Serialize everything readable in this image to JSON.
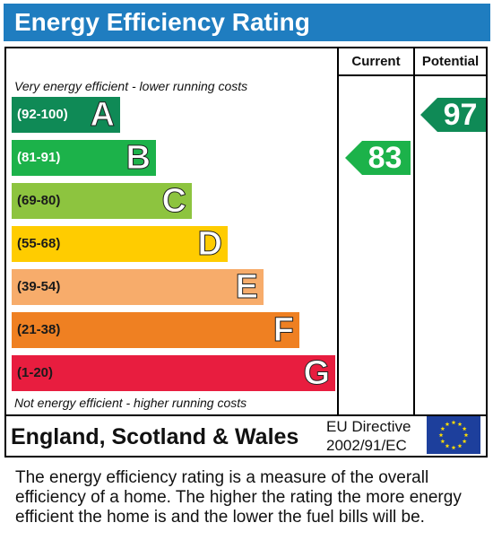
{
  "title": "Energy Efficiency Rating",
  "columns": {
    "current": "Current",
    "potential": "Potential"
  },
  "notes": {
    "top": "Very energy efficient - lower running costs",
    "bottom": "Not energy efficient - higher running costs"
  },
  "chart_data": {
    "type": "bar",
    "bands": [
      {
        "range": "(92-100)",
        "letter": "A",
        "color": "#0f8a56",
        "dark": false
      },
      {
        "range": "(81-91)",
        "letter": "B",
        "color": "#1cb24a",
        "dark": false
      },
      {
        "range": "(69-80)",
        "letter": "C",
        "color": "#8dc43f",
        "dark": true
      },
      {
        "range": "(55-68)",
        "letter": "D",
        "color": "#ffcc00",
        "dark": true
      },
      {
        "range": "(39-54)",
        "letter": "E",
        "color": "#f7ac6b",
        "dark": true
      },
      {
        "range": "(21-38)",
        "letter": "F",
        "color": "#ef8022",
        "dark": true
      },
      {
        "range": "(1-20)",
        "letter": "G",
        "color": "#e81d3f",
        "dark": true
      }
    ],
    "current": {
      "value": 83,
      "band": "B",
      "color": "#1cb24a"
    },
    "potential": {
      "value": 97,
      "band": "A",
      "color": "#0f8a56"
    }
  },
  "footer": {
    "country": "England, Scotland & Wales",
    "directive_line1": "EU Directive",
    "directive_line2": "2002/91/EC",
    "flag_icon": "eu-flag-icon"
  },
  "description": "The energy efficiency rating is a measure of the overall efficiency of a home. The higher the rating the more energy efficient the home is and the lower the fuel bills will be."
}
